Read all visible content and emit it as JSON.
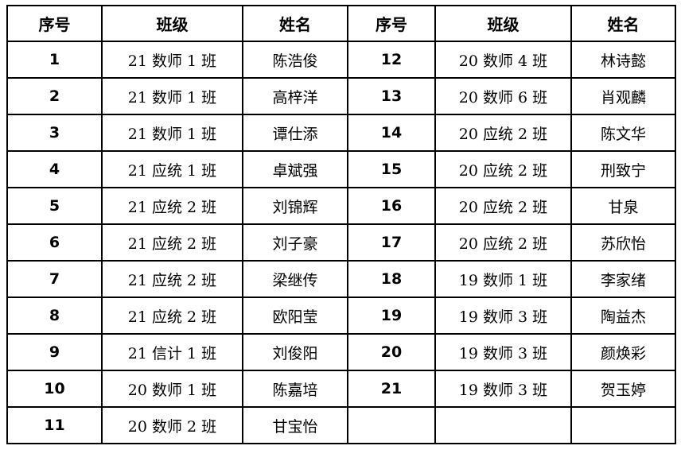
{
  "headers": [
    "序号",
    "班级",
    "姓名",
    "序号",
    "班级",
    "姓名"
  ],
  "left": [
    {
      "no": "1",
      "class": "21 数师 1 班",
      "name": "陈浩俊"
    },
    {
      "no": "2",
      "class": "21 数师 1 班",
      "name": "高梓洋"
    },
    {
      "no": "3",
      "class": "21 数师 1 班",
      "name": "谭仕添"
    },
    {
      "no": "4",
      "class": "21 应统 1 班",
      "name": "卓斌强"
    },
    {
      "no": "5",
      "class": "21 应统 2 班",
      "name": "刘锦辉"
    },
    {
      "no": "6",
      "class": "21 应统 2 班",
      "name": "刘子豪"
    },
    {
      "no": "7",
      "class": "21 应统 2 班",
      "name": "梁继传"
    },
    {
      "no": "8",
      "class": "21 应统 2 班",
      "name": "欧阳莹"
    },
    {
      "no": "9",
      "class": "21 信计 1 班",
      "name": "刘俊阳"
    },
    {
      "no": "10",
      "class": "20 数师 1 班",
      "name": "陈嘉培"
    },
    {
      "no": "11",
      "class": "20 数师 2 班",
      "name": "甘宝怡"
    }
  ],
  "right": [
    {
      "no": "12",
      "class": "20 数师 4 班",
      "name": "林诗懿"
    },
    {
      "no": "13",
      "class": "20 数师 6 班",
      "name": "肖观麟"
    },
    {
      "no": "14",
      "class": "20 应统 2 班",
      "name": "陈文华"
    },
    {
      "no": "15",
      "class": "20 应统 2 班",
      "name": "刑致宁"
    },
    {
      "no": "16",
      "class": "20 应统 2 班",
      "name": "甘泉"
    },
    {
      "no": "17",
      "class": "20 应统 2 班",
      "name": "苏欣怡"
    },
    {
      "no": "18",
      "class": "19 数师 1 班",
      "name": "李家绪"
    },
    {
      "no": "19",
      "class": "19 数师 3 班",
      "name": "陶益杰"
    },
    {
      "no": "20",
      "class": "19 数师 3 班",
      "name": "颜焕彩"
    },
    {
      "no": "21",
      "class": "19 数师 3 班",
      "name": "贺玉婷"
    }
  ]
}
